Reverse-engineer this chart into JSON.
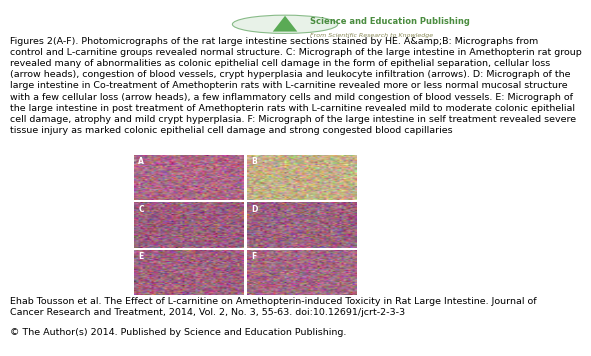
{
  "background_color": "#ffffff",
  "header_logo_text": "Science and Education Publishing",
  "header_logo_subtext": "From Scientific Research to Knowledge",
  "header_logo_color": "#4a8c3f",
  "figure_caption": "Figures 2(A-F). Photomicrographs of the rat large intestine sections stained by HE. A&amp;B: Micrographs from\ncontrol and L-carnitine groups revealed normal structure. C: Micrograph of the large intestine in Amethopterin rat group\nrevealed many of abnormalities as colonic epithelial cell damage in the form of epithelial separation, cellular loss\n(arrow heads), congestion of blood vessels, crypt hyperplasia and leukocyte infiltration (arrows). D: Micrograph of the\nlarge intestine in Co-treatment of Amethopterin rats with L-carnitine revealed more or less normal mucosal structure\nwith a few cellular loss (arrow heads), a few inflammatory cells and mild congestion of blood vessels. E: Micrograph of\nthe large intestine in post treatment of Amethopterin rats with L-carnitine revealed mild to moderate colonic epithelial\ncell damage, atrophy and mild crypt hyperplasia. F: Micrograph of the large intestine in self treatment revealed severe\ntissue injury as marked colonic epithelial cell damage and strong congested blood capillaries",
  "citation_line1": "Ehab Tousson et al. The Effect of L-carnitine on Amethopterin-induced Toxicity in Rat Large Intestine. Journal of",
  "citation_line2": "Cancer Research and Treatment, 2014, Vol. 2, No. 3, 55-63. doi:10.12691/jcrt-2-3-3",
  "copyright": "© The Author(s) 2014. Published by Science and Education Publishing.",
  "panel_labels_grid": [
    [
      "A",
      "B"
    ],
    [
      "C",
      "D"
    ],
    [
      "E",
      "F"
    ]
  ],
  "panel_bases": [
    [
      [
        175,
        105,
        135
      ],
      [
        195,
        175,
        135
      ]
    ],
    [
      [
        155,
        95,
        125
      ],
      [
        155,
        100,
        128
      ]
    ],
    [
      [
        160,
        98,
        128
      ],
      [
        165,
        105,
        132
      ]
    ]
  ],
  "caption_fontsize": 6.8,
  "citation_fontsize": 6.8,
  "copyright_fontsize": 6.8,
  "logo_text_fontsize": 6.0,
  "logo_subtext_fontsize": 4.5
}
